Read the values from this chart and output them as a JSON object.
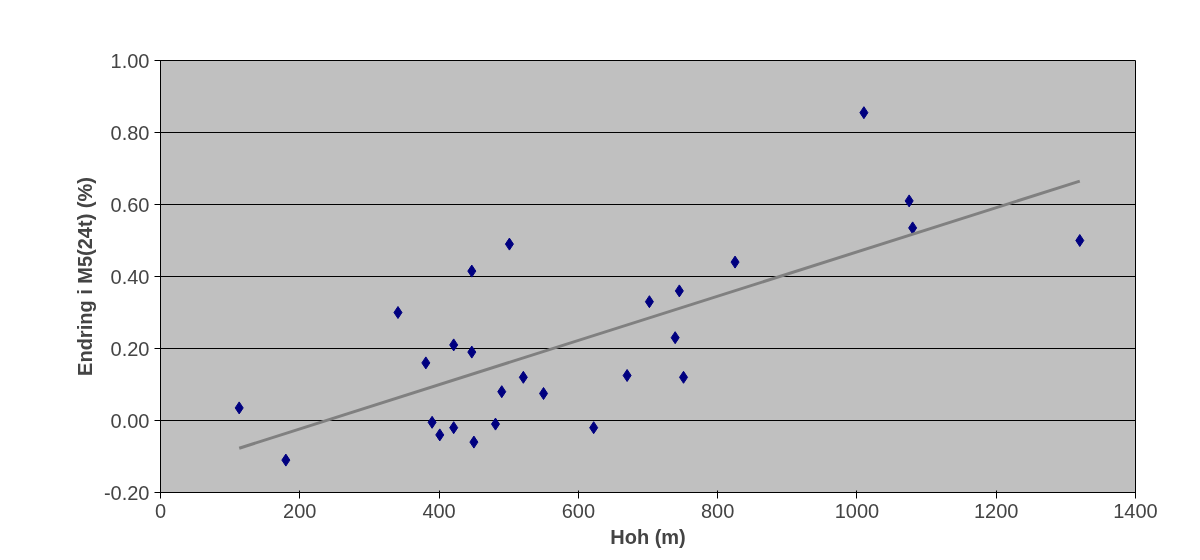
{
  "chart_data": {
    "type": "scatter",
    "xlabel": "Hoh (m)",
    "ylabel": "Endring i M5(24t) (%)",
    "grid": "y",
    "xlim": [
      0,
      1400
    ],
    "ylim": [
      -0.2,
      1.0
    ],
    "xticks": [
      0,
      200,
      400,
      600,
      800,
      1000,
      1200,
      1400
    ],
    "yticks": [
      {
        "value": -0.2,
        "label": "-0.20"
      },
      {
        "value": 0,
        "label": "0.00"
      },
      {
        "value": 0.2,
        "label": "0.20"
      },
      {
        "value": 0.4,
        "label": "0.40"
      },
      {
        "value": 0.6,
        "label": "0.60"
      },
      {
        "value": 0.8,
        "label": "0.80"
      },
      {
        "value": 1.0,
        "label": "1.00"
      }
    ],
    "series": [
      {
        "marker": "diamond",
        "color": "#000080",
        "x": [
          113,
          180,
          341,
          381,
          390,
          401,
          421,
          421,
          447,
          447,
          450,
          481,
          490,
          501,
          521,
          550,
          622,
          670,
          702,
          739,
          745,
          751,
          825,
          1010,
          1075,
          1080,
          1320
        ],
        "values": [
          0.035,
          -0.11,
          0.3,
          0.16,
          -0.005,
          -0.04,
          0.21,
          -0.02,
          0.415,
          0.19,
          -0.06,
          -0.01,
          0.08,
          0.49,
          0.12,
          0.075,
          -0.02,
          0.125,
          0.33,
          0.23,
          0.36,
          0.12,
          0.44,
          0.855,
          0.61,
          0.535,
          0.5
        ]
      },
      {
        "type": "line",
        "marker": "none",
        "color": "#808080",
        "x": [
          113,
          1320
        ],
        "values": [
          -0.077,
          0.665
        ]
      }
    ]
  }
}
